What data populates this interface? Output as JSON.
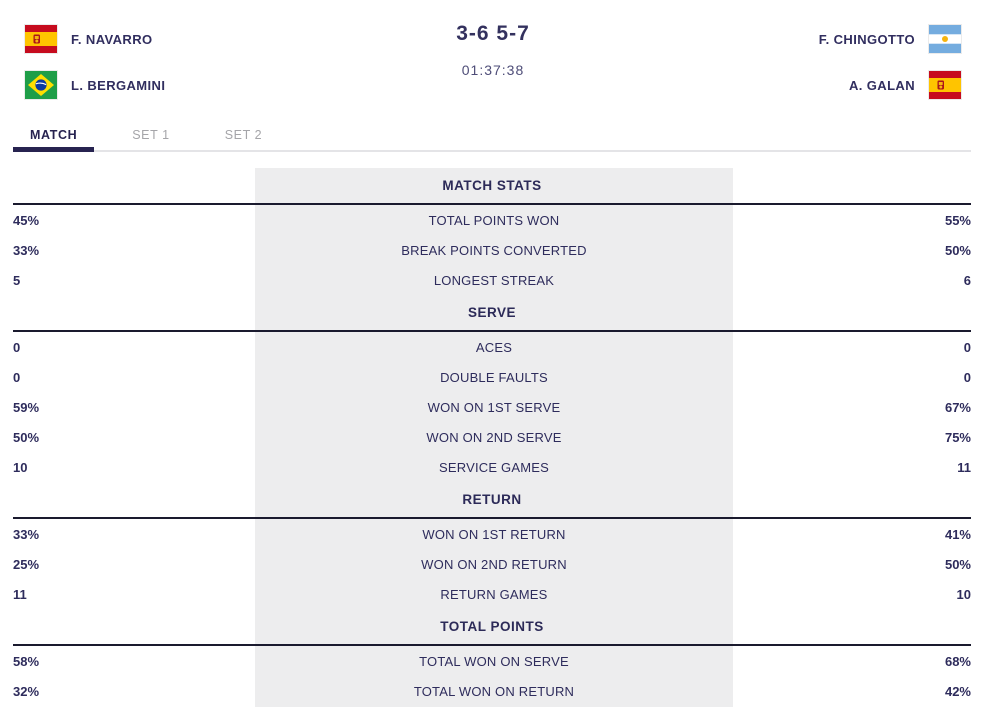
{
  "header": {
    "team_left": {
      "players": [
        {
          "name": "F. NAVARRO",
          "flag": "spain"
        },
        {
          "name": "L. BERGAMINI",
          "flag": "brazil"
        }
      ]
    },
    "score": "3-6 5-7",
    "duration": "01:37:38",
    "team_right": {
      "players": [
        {
          "name": "F. CHINGOTTO",
          "flag": "argentina"
        },
        {
          "name": "A. GALAN",
          "flag": "spain"
        }
      ]
    }
  },
  "tabs": [
    {
      "id": "match",
      "label": "MATCH",
      "active": true
    },
    {
      "id": "set-1",
      "label": "SET 1",
      "active": false
    },
    {
      "id": "set-2",
      "label": "SET 2",
      "active": false
    }
  ],
  "stats_sections": [
    {
      "title": "MATCH STATS",
      "rows": [
        {
          "left": "45%",
          "label": "TOTAL POINTS WON",
          "right": "55%"
        },
        {
          "left": "33%",
          "label": "BREAK POINTS CONVERTED",
          "right": "50%"
        },
        {
          "left": "5",
          "label": "LONGEST STREAK",
          "right": "6"
        }
      ]
    },
    {
      "title": "SERVE",
      "rows": [
        {
          "left": "0",
          "label": "ACES",
          "right": "0"
        },
        {
          "left": "0",
          "label": "DOUBLE FAULTS",
          "right": "0"
        },
        {
          "left": "59%",
          "label": "WON ON 1ST SERVE",
          "right": "67%"
        },
        {
          "left": "50%",
          "label": "WON ON 2ND SERVE",
          "right": "75%"
        },
        {
          "left": "10",
          "label": "SERVICE GAMES",
          "right": "11"
        }
      ]
    },
    {
      "title": "RETURN",
      "rows": [
        {
          "left": "33%",
          "label": "WON ON 1ST RETURN",
          "right": "41%"
        },
        {
          "left": "25%",
          "label": "WON ON 2ND RETURN",
          "right": "50%"
        },
        {
          "left": "11",
          "label": "RETURN GAMES",
          "right": "10"
        }
      ]
    },
    {
      "title": "TOTAL POINTS",
      "rows": [
        {
          "left": "58%",
          "label": "TOTAL WON ON SERVE",
          "right": "68%"
        },
        {
          "left": "32%",
          "label": "TOTAL WON ON RETURN",
          "right": "42%"
        }
      ]
    }
  ],
  "colors": {
    "text_navy": "#2e2c5c",
    "score_navy": "#33315e",
    "duration_gray": "#4e4d78",
    "section_line": "#1a1a2e",
    "center_background": "#ededee",
    "tab_active": "#272350",
    "tab_inactive": "#a5a5a9",
    "tab_rule": "#e4e4e7",
    "flag_spain_red": "#c60b1e",
    "flag_spain_yellow": "#ffc400",
    "flag_brazil_green": "#1f9e48",
    "flag_brazil_yellow": "#fedf00",
    "flag_brazil_blue": "#0a3aa0",
    "flag_argentina_blue": "#74acdf",
    "flag_argentina_sun": "#f6b40e"
  }
}
